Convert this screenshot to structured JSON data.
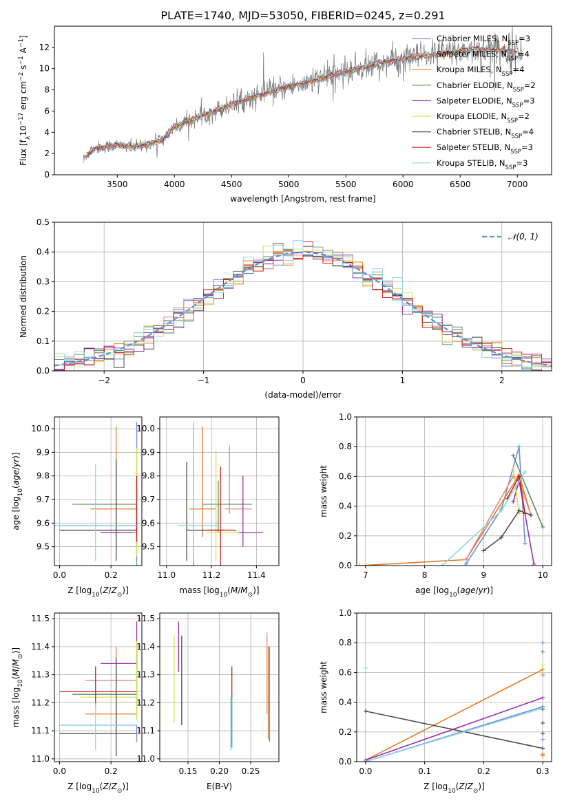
{
  "figure_title": "PLATE=1740, MJD=53050, FIBERID=0245, z=0.291",
  "colors": {
    "Chabrier MILES": "#6a8fd8",
    "Salpeter MILES": "#e08a8a",
    "Kroupa MILES": "#e07b22",
    "Chabrier ELODIE": "#5e8a5e",
    "Salpeter ELODIE": "#9b2fb0",
    "Kroupa ELODIE": "#d6e050",
    "Chabrier STELIB": "#4a4a4a",
    "Salpeter STELIB": "#c81e1e",
    "Kroupa STELIB": "#8fd6e6",
    "data": "#808080",
    "gaussian": "#5b8fd8"
  },
  "chart_data": [
    {
      "id": "spectrum",
      "type": "line",
      "xlabel": "wavelength [Angstrom, rest frame]",
      "ylabel": "Flux [f",
      "xlim": [
        2950,
        7300
      ],
      "ylim": [
        0,
        14
      ],
      "xticks": [
        3500,
        4000,
        4500,
        5000,
        5500,
        6000,
        6500,
        7000
      ],
      "yticks": [
        0,
        2,
        4,
        6,
        8,
        10,
        12
      ],
      "grid": false,
      "legend_position": "top-right",
      "data_start": 3200,
      "data_end": 7050,
      "continuum": {
        "x": [
          3200,
          3300,
          3500,
          3650,
          3800,
          3900,
          4000,
          4200,
          4400,
          4600,
          4800,
          5000,
          5200,
          5400,
          5600,
          5800,
          6000,
          6200,
          6400,
          6600,
          6800,
          7000
        ],
        "y": [
          1.5,
          2.5,
          2.8,
          2.6,
          3.0,
          3.3,
          4.5,
          5.4,
          6.2,
          7.0,
          7.7,
          8.3,
          8.8,
          9.4,
          10.0,
          10.5,
          10.9,
          11.2,
          11.5,
          11.8,
          11.8,
          11.6
        ]
      },
      "legend": [
        {
          "name": "Chabrier MILES, N",
          "sub": "SSP",
          "tail": "=3"
        },
        {
          "name": "Salpeter MILES, N",
          "sub": "SSP",
          "tail": "=4"
        },
        {
          "name": "Kroupa MILES, N",
          "sub": "SSP",
          "tail": "=4"
        },
        {
          "name": "Chabrier ELODIE, N",
          "sub": "SSP",
          "tail": "=2"
        },
        {
          "name": "Salpeter ELODIE, N",
          "sub": "SSP",
          "tail": "=3"
        },
        {
          "name": "Kroupa ELODIE, N",
          "sub": "SSP",
          "tail": "=2"
        },
        {
          "name": "Chabrier STELIB, N",
          "sub": "SSP",
          "tail": "=4"
        },
        {
          "name": "Salpeter STELIB, N",
          "sub": "SSP",
          "tail": "=3"
        },
        {
          "name": "Kroupa STELIB, N",
          "sub": "SSP",
          "tail": "=3"
        }
      ]
    },
    {
      "id": "residuals",
      "type": "line",
      "xlabel": "(data-model)/error",
      "ylabel": "Normed distribution",
      "xlim": [
        -2.5,
        2.5
      ],
      "ylim": [
        0,
        0.5
      ],
      "xticks": [
        -2,
        -1,
        0,
        1,
        2
      ],
      "yticks": [
        0.0,
        0.1,
        0.2,
        0.3,
        0.4,
        0.5
      ],
      "grid": true,
      "legend_position": "top-right",
      "legend": [
        "𝒩(0, 1)"
      ],
      "bin_width": 0.1,
      "n_bins": 50
    },
    {
      "id": "age_vs_Z",
      "type": "scatter",
      "xlabel": "Z [log",
      "ylabel": "age  [log",
      "xlim": [
        -0.02,
        0.32
      ],
      "ylim": [
        9.42,
        10.05
      ],
      "xticks": [
        0.0,
        0.2
      ],
      "yticks": [
        9.5,
        9.6,
        9.7,
        9.8,
        9.9,
        10.0
      ],
      "grid": true,
      "points": [
        {
          "model": "Chabrier MILES",
          "x": 0.3,
          "y": 9.59,
          "xerr": [
            0.3,
            0.0
          ],
          "yerr": [
            0.18,
            0.44
          ]
        },
        {
          "model": "Kroupa MILES",
          "x": 0.22,
          "y": 9.66,
          "xerr": [
            0.1,
            0.08
          ],
          "yerr": [
            0.12,
            0.35
          ]
        },
        {
          "model": "Salpeter MILES",
          "x": 0.3,
          "y": 9.66,
          "xerr": [
            0.01,
            0.0
          ],
          "yerr": [
            0.05,
            0.1
          ]
        },
        {
          "model": "Chabrier ELODIE",
          "x": 0.3,
          "y": 9.68,
          "xerr": [
            0.25,
            0.0
          ],
          "yerr": [
            0.12,
            0.12
          ]
        },
        {
          "model": "Salpeter ELODIE",
          "x": 0.3,
          "y": 9.56,
          "xerr": [
            0.14,
            0.0
          ],
          "yerr": [
            0.06,
            0.05
          ]
        },
        {
          "model": "Kroupa ELODIE",
          "x": 0.3,
          "y": 9.56,
          "xerr": [
            0.01,
            0.0
          ],
          "yerr": [
            0.1,
            0.36
          ]
        },
        {
          "model": "Chabrier STELIB",
          "x": 0.22,
          "y": 9.57,
          "xerr": [
            0.22,
            0.08
          ],
          "yerr": [
            0.13,
            0.3
          ]
        },
        {
          "model": "Salpeter STELIB",
          "x": 0.3,
          "y": 9.57,
          "xerr": [
            0.01,
            0.0
          ],
          "yerr": [
            0.05,
            0.23
          ]
        },
        {
          "model": "Kroupa STELIB",
          "x": 0.14,
          "y": 9.59,
          "xerr": [
            0.16,
            0.16
          ],
          "yerr": [
            0.15,
            0.26
          ]
        }
      ]
    },
    {
      "id": "age_vs_mass",
      "type": "scatter",
      "xlabel": "mass [log",
      "ylabel": "",
      "xlim": [
        10.97,
        11.5
      ],
      "ylim": [
        9.42,
        10.05
      ],
      "xticks": [
        11.0,
        11.2,
        11.4
      ],
      "yticks": [
        9.5,
        9.6,
        9.7,
        9.8,
        9.9,
        10.0
      ],
      "grid": true,
      "points": [
        {
          "model": "Chabrier MILES",
          "x": 11.12,
          "y": 9.59,
          "xerr": [
            0.0,
            0.0
          ],
          "yerr": [
            0.18,
            0.44
          ]
        },
        {
          "model": "Kroupa MILES",
          "x": 11.16,
          "y": 9.66,
          "xerr": [
            0.06,
            0.06
          ],
          "yerr": [
            0.12,
            0.35
          ]
        },
        {
          "model": "Salpeter MILES",
          "x": 11.28,
          "y": 9.66,
          "xerr": [
            0.02,
            0.1
          ],
          "yerr": [
            0.02,
            0.27
          ]
        },
        {
          "model": "Chabrier ELODIE",
          "x": 11.23,
          "y": 9.68,
          "xerr": [
            0.07,
            0.15
          ],
          "yerr": [
            0.12,
            0.1
          ]
        },
        {
          "model": "Salpeter ELODIE",
          "x": 11.34,
          "y": 9.56,
          "xerr": [
            0.02,
            0.09
          ],
          "yerr": [
            0.06,
            0.24
          ]
        },
        {
          "model": "Kroupa ELODIE",
          "x": 11.22,
          "y": 9.56,
          "xerr": [
            0.04,
            0.1
          ],
          "yerr": [
            0.12,
            0.35
          ]
        },
        {
          "model": "Chabrier STELIB",
          "x": 11.09,
          "y": 9.57,
          "xerr": [
            0.0,
            0.17
          ],
          "yerr": [
            0.13,
            0.29
          ]
        },
        {
          "model": "Salpeter STELIB",
          "x": 11.24,
          "y": 9.57,
          "xerr": [
            0.06,
            0.07
          ],
          "yerr": [
            0.15,
            0.27
          ]
        },
        {
          "model": "Kroupa STELIB",
          "x": 11.12,
          "y": 9.59,
          "xerr": [
            0.07,
            0.12
          ],
          "yerr": [
            0.15,
            0.44
          ]
        }
      ]
    },
    {
      "id": "weight_vs_age",
      "type": "line",
      "xlabel": "age  [log",
      "ylabel": "mass weight",
      "xlim": [
        6.85,
        10.15
      ],
      "ylim": [
        0,
        1
      ],
      "xticks": [
        7,
        8,
        9,
        10
      ],
      "yticks": [
        0.0,
        0.2,
        0.4,
        0.6,
        0.8,
        1.0
      ],
      "grid": true,
      "series": [
        {
          "model": "Chabrier MILES",
          "x": [
            8.7,
            9.3,
            9.6,
            9.7
          ],
          "y": [
            0.01,
            0.38,
            0.8,
            0.15
          ]
        },
        {
          "model": "Kroupa MILES",
          "x": [
            6.9,
            8.7,
            9.6,
            9.8
          ],
          "y": [
            0.0,
            0.04,
            0.61,
            0.34
          ]
        },
        {
          "model": "Salpeter MILES",
          "x": [
            8.7,
            9.5,
            9.6,
            9.8
          ],
          "y": [
            0.04,
            0.6,
            0.57,
            0.34
          ]
        },
        {
          "model": "Chabrier ELODIE",
          "x": [
            9.5,
            10.0
          ],
          "y": [
            0.74,
            0.26
          ]
        },
        {
          "model": "Salpeter ELODIE",
          "x": [
            9.5,
            9.6,
            9.85
          ],
          "y": [
            0.43,
            0.57,
            0.01
          ]
        },
        {
          "model": "Kroupa ELODIE",
          "x": [
            9.5,
            9.6
          ],
          "y": [
            0.65,
            0.35
          ]
        },
        {
          "model": "Chabrier STELIB",
          "x": [
            9.0,
            9.3,
            9.6,
            9.8
          ],
          "y": [
            0.1,
            0.19,
            0.37,
            0.34
          ]
        },
        {
          "model": "Salpeter STELIB",
          "x": [
            9.4,
            9.6,
            9.7
          ],
          "y": [
            0.45,
            0.6,
            0.35
          ]
        },
        {
          "model": "Kroupa STELIB",
          "x": [
            8.3,
            9.3,
            9.7
          ],
          "y": [
            0.0,
            0.37,
            0.63
          ]
        }
      ]
    },
    {
      "id": "mass_vs_Z",
      "type": "scatter",
      "xlabel": "Z [log",
      "ylabel": "mass [log",
      "xlim": [
        -0.02,
        0.32
      ],
      "ylim": [
        10.99,
        11.52
      ],
      "xticks": [
        0.0,
        0.2
      ],
      "yticks": [
        11.0,
        11.1,
        11.2,
        11.3,
        11.4,
        11.5
      ],
      "grid": true,
      "points": [
        {
          "model": "Chabrier MILES",
          "x": 0.3,
          "y": 11.12,
          "xerr": [
            0.3,
            0.0
          ],
          "yerr": [
            0.06,
            0.0
          ]
        },
        {
          "model": "Kroupa MILES",
          "x": 0.22,
          "y": 11.16,
          "xerr": [
            0.12,
            0.08
          ],
          "yerr": [
            0.06,
            0.24
          ]
        },
        {
          "model": "Salpeter MILES",
          "x": 0.3,
          "y": 11.28,
          "xerr": [
            0.2,
            0.0
          ],
          "yerr": [
            0.09,
            0.13
          ]
        },
        {
          "model": "Chabrier ELODIE",
          "x": 0.3,
          "y": 11.23,
          "xerr": [
            0.25,
            0.0
          ],
          "yerr": [
            0.07,
            0.15
          ]
        },
        {
          "model": "Salpeter ELODIE",
          "x": 0.3,
          "y": 11.34,
          "xerr": [
            0.14,
            0.0
          ],
          "yerr": [
            0.02,
            0.15
          ]
        },
        {
          "model": "Kroupa ELODIE",
          "x": 0.3,
          "y": 11.22,
          "xerr": [
            0.22,
            0.0
          ],
          "yerr": [
            0.08,
            0.2
          ]
        },
        {
          "model": "Chabrier STELIB",
          "x": 0.22,
          "y": 11.09,
          "xerr": [
            0.22,
            0.08
          ],
          "yerr": [
            0.08,
            0.27
          ]
        },
        {
          "model": "Salpeter STELIB",
          "x": 0.14,
          "y": 11.24,
          "xerr": [
            0.14,
            0.16
          ],
          "yerr": [
            0.06,
            0.09
          ]
        },
        {
          "model": "Kroupa STELIB",
          "x": 0.14,
          "y": 11.12,
          "xerr": [
            0.14,
            0.16
          ],
          "yerr": [
            0.09,
            0.08
          ]
        }
      ]
    },
    {
      "id": "mass_vs_ebv",
      "type": "scatter",
      "xlabel": "E(B-V)",
      "ylabel": "",
      "xlim": [
        0.105,
        0.295
      ],
      "ylim": [
        10.99,
        11.52
      ],
      "xticks": [
        0.15,
        0.2,
        0.25
      ],
      "yticks": [
        11.0,
        11.1,
        11.2,
        11.3,
        11.4,
        11.5
      ],
      "grid": true,
      "points": [
        {
          "model": "Chabrier MILES",
          "x": 0.28,
          "y": 11.12,
          "xerr": [
            0,
            0
          ],
          "yerr": [
            0.06,
            0.28
          ]
        },
        {
          "model": "Kroupa MILES",
          "x": 0.278,
          "y": 11.16,
          "xerr": [
            0,
            0
          ],
          "yerr": [
            0.09,
            0.24
          ]
        },
        {
          "model": "Salpeter MILES",
          "x": 0.276,
          "y": 11.28,
          "xerr": [
            0,
            0
          ],
          "yerr": [
            0.12,
            0.17
          ]
        },
        {
          "model": "Chabrier ELODIE",
          "x": 0.22,
          "y": 11.23,
          "xerr": [
            0,
            0
          ],
          "yerr": [
            0.19,
            0.0
          ]
        },
        {
          "model": "Salpeter ELODIE",
          "x": 0.135,
          "y": 11.34,
          "xerr": [
            0,
            0
          ],
          "yerr": [
            0.03,
            0.15
          ]
        },
        {
          "model": "Kroupa ELODIE",
          "x": 0.128,
          "y": 11.22,
          "xerr": [
            0,
            0
          ],
          "yerr": [
            0.09,
            0.22
          ]
        },
        {
          "model": "Chabrier STELIB",
          "x": 0.14,
          "y": 11.28,
          "xerr": [
            0,
            0
          ],
          "yerr": [
            0.16,
            0.16
          ]
        },
        {
          "model": "Salpeter STELIB",
          "x": 0.22,
          "y": 11.3,
          "xerr": [
            0,
            0
          ],
          "yerr": [
            0.08,
            0.03
          ]
        },
        {
          "model": "Kroupa STELIB",
          "x": 0.218,
          "y": 11.12,
          "xerr": [
            0,
            0
          ],
          "yerr": [
            0.09,
            0.1
          ]
        }
      ]
    },
    {
      "id": "weight_vs_Z",
      "type": "line",
      "xlabel": "Z [log",
      "ylabel": "mass weight",
      "xlim": [
        -0.015,
        0.315
      ],
      "ylim": [
        0,
        1
      ],
      "xticks": [
        0.0,
        0.1,
        0.2,
        0.3
      ],
      "yticks": [
        0.0,
        0.2,
        0.4,
        0.6,
        0.8,
        1.0
      ],
      "grid": true,
      "series": [
        {
          "model": "Chabrier MILES",
          "x": [
            0.0,
            0.3
          ],
          "y": [
            0.0,
            0.37
          ]
        },
        {
          "model": "Kroupa MILES",
          "x": [
            0.0,
            0.3
          ],
          "y": [
            0.01,
            0.62
          ]
        },
        {
          "model": "Salpeter ELODIE",
          "x": [
            0.0,
            0.3
          ],
          "y": [
            0.01,
            0.43
          ]
        },
        {
          "model": "Chabrier STELIB",
          "x": [
            0.0,
            0.3
          ],
          "y": [
            0.34,
            0.09
          ]
        },
        {
          "model": "Kroupa STELIB",
          "x": [
            0.0,
            0.3
          ],
          "y": [
            0.0,
            0.36
          ]
        }
      ],
      "markers": [
        {
          "model": "Chabrier MILES",
          "x": 0.3,
          "y": [
            0.8,
            0.59,
            0.37,
            0.15
          ]
        },
        {
          "model": "Chabrier ELODIE",
          "x": 0.3,
          "y": [
            0.74,
            0.35
          ]
        },
        {
          "model": "Kroupa ELODIE",
          "x": 0.3,
          "y": [
            0.65,
            0.6
          ]
        },
        {
          "model": "Chabrier STELIB",
          "x": 0.3,
          "y": [
            0.26,
            0.19
          ]
        },
        {
          "model": "Kroupa MILES",
          "x": 0.3,
          "y": [
            0.05,
            0.04
          ]
        },
        {
          "model": "Kroupa STELIB",
          "x": 0.0,
          "y": [
            0.63
          ]
        },
        {
          "model": "Salpeter MILES",
          "x": 0.3,
          "y": [
            0.58
          ]
        }
      ]
    }
  ]
}
